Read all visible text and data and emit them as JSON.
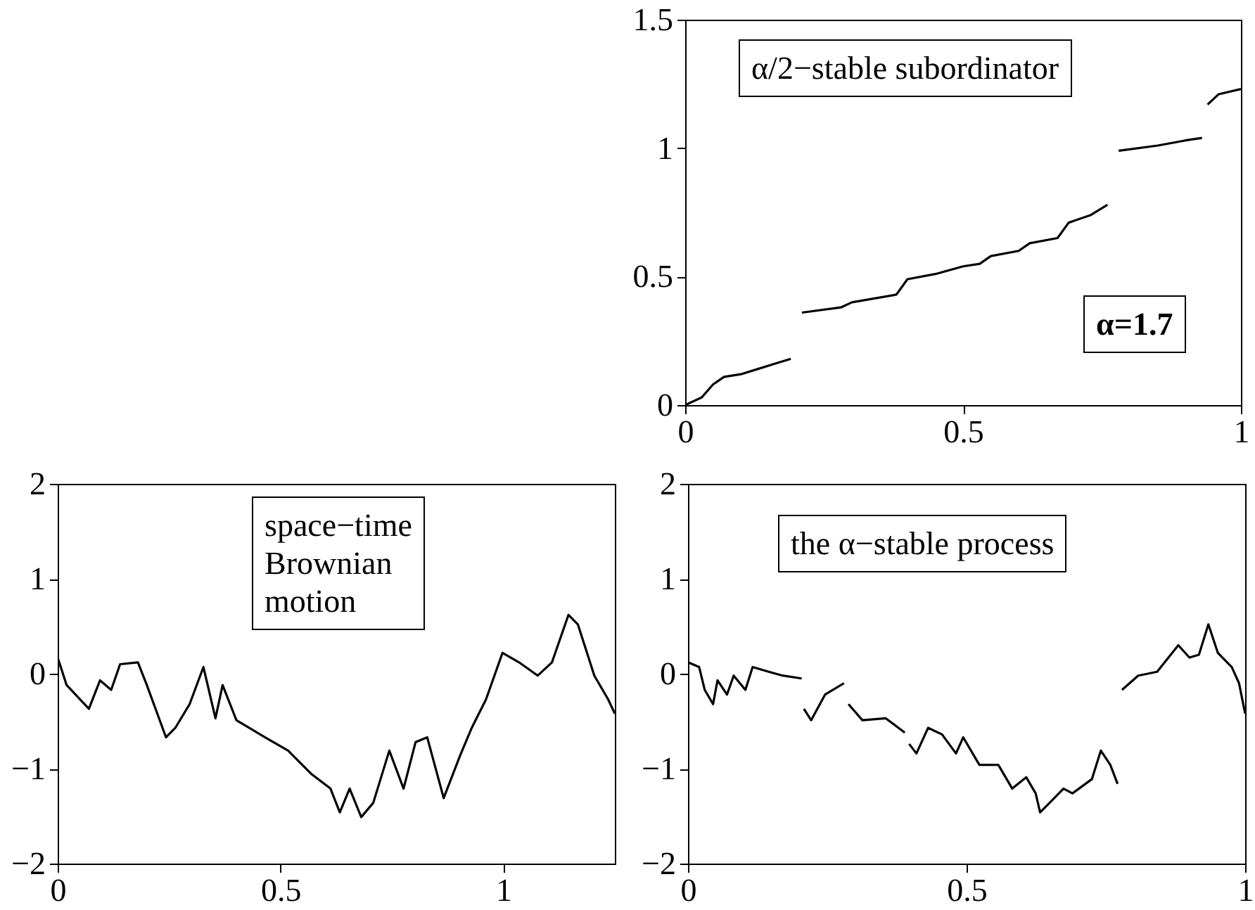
{
  "chart_data": [
    {
      "type": "line",
      "annotations": [
        "α/2−stable subordinator",
        "α=1.7"
      ],
      "xlim": [
        0,
        1
      ],
      "ylim": [
        0,
        1.5
      ],
      "xticks": [
        0,
        0.5,
        1
      ],
      "yticks": [
        0,
        0.5,
        1,
        1.5
      ],
      "grid": false,
      "x": [
        0,
        0.03,
        0.05,
        0.07,
        0.1,
        0.13,
        0.16,
        0.19,
        0.2,
        0.21,
        0.28,
        0.3,
        0.38,
        0.4,
        0.45,
        0.5,
        0.53,
        0.55,
        0.6,
        0.62,
        0.67,
        0.69,
        0.73,
        0.76,
        0.77,
        0.78,
        0.85,
        0.9,
        0.93,
        0.935,
        0.94,
        0.96,
        1
      ],
      "series": [
        {
          "color": "#000000",
          "values": [
            0,
            0.03,
            0.08,
            0.11,
            0.12,
            0.14,
            0.16,
            0.18,
            null,
            0.36,
            0.38,
            0.4,
            0.43,
            0.49,
            0.51,
            0.54,
            0.55,
            0.58,
            0.6,
            0.63,
            0.65,
            0.71,
            0.74,
            0.78,
            null,
            0.99,
            1.01,
            1.03,
            1.04,
            null,
            1.17,
            1.21,
            1.23
          ]
        }
      ]
    },
    {
      "type": "line",
      "annotations": [
        "space−time\nBrownian\nmotion"
      ],
      "xlim": [
        0,
        1.25
      ],
      "ylim": [
        -2,
        2
      ],
      "xticks": [
        0,
        0.5,
        1
      ],
      "yticks": [
        -2,
        -1,
        0,
        1,
        2
      ],
      "grid": false,
      "x": [
        0,
        0.02,
        0.04,
        0.07,
        0.095,
        0.12,
        0.14,
        0.18,
        0.2,
        0.243,
        0.264,
        0.296,
        0.327,
        0.354,
        0.37,
        0.401,
        0.465,
        0.517,
        0.57,
        0.612,
        0.633,
        0.655,
        0.681,
        0.708,
        0.744,
        0.776,
        0.803,
        0.829,
        0.866,
        0.903,
        0.929,
        0.961,
        0.998,
        1.035,
        1.077,
        1.109,
        1.146,
        1.167,
        1.204,
        1.235,
        1.25
      ],
      "series": [
        {
          "color": "#000000",
          "values": [
            0.17,
            -0.12,
            -0.22,
            -0.37,
            -0.07,
            -0.17,
            0.1,
            0.12,
            -0.12,
            -0.67,
            -0.57,
            -0.32,
            0.07,
            -0.47,
            -0.12,
            -0.49,
            -0.67,
            -0.81,
            -1.06,
            -1.21,
            -1.46,
            -1.21,
            -1.51,
            -1.36,
            -0.81,
            -1.21,
            -0.72,
            -0.67,
            -1.31,
            -0.86,
            -0.57,
            -0.27,
            0.22,
            0.12,
            -0.02,
            0.12,
            0.62,
            0.52,
            -0.02,
            -0.27,
            -0.42
          ]
        }
      ]
    },
    {
      "type": "line",
      "annotations": [
        "the α−stable process"
      ],
      "xlim": [
        0,
        1
      ],
      "ylim": [
        -2,
        2
      ],
      "xticks": [
        0,
        0.5,
        1
      ],
      "yticks": [
        -2,
        -1,
        0,
        1,
        2
      ],
      "grid": false,
      "x": [
        0,
        0.02,
        0.03,
        0.045,
        0.053,
        0.07,
        0.082,
        0.103,
        0.116,
        0.145,
        0.17,
        0.204,
        0.206,
        0.208,
        0.221,
        0.246,
        0.28,
        0.284,
        0.288,
        0.313,
        0.355,
        0.389,
        0.393,
        0.397,
        0.41,
        0.431,
        0.456,
        0.481,
        0.494,
        0.523,
        0.557,
        0.582,
        0.607,
        0.624,
        0.632,
        0.649,
        0.674,
        0.69,
        0.725,
        0.741,
        0.758,
        0.771,
        0.775,
        0.779,
        0.808,
        0.842,
        0.88,
        0.9,
        0.917,
        0.934,
        0.951,
        0.976,
        0.989,
        1
      ],
      "series": [
        {
          "color": "#000000",
          "values": [
            0.12,
            0.07,
            -0.17,
            -0.32,
            -0.07,
            -0.22,
            -0.02,
            -0.17,
            0.07,
            0.02,
            -0.02,
            -0.05,
            null,
            -0.37,
            -0.49,
            -0.22,
            -0.1,
            null,
            -0.32,
            -0.49,
            -0.47,
            -0.62,
            null,
            -0.74,
            -0.84,
            -0.57,
            -0.64,
            -0.84,
            -0.67,
            -0.96,
            -0.96,
            -1.21,
            -1.09,
            -1.26,
            -1.46,
            -1.36,
            -1.21,
            -1.26,
            -1.11,
            -0.81,
            -0.96,
            -1.16,
            null,
            -0.17,
            -0.02,
            0.02,
            0.3,
            0.17,
            0.2,
            0.52,
            0.22,
            0.07,
            -0.1,
            -0.42
          ]
        }
      ]
    }
  ]
}
